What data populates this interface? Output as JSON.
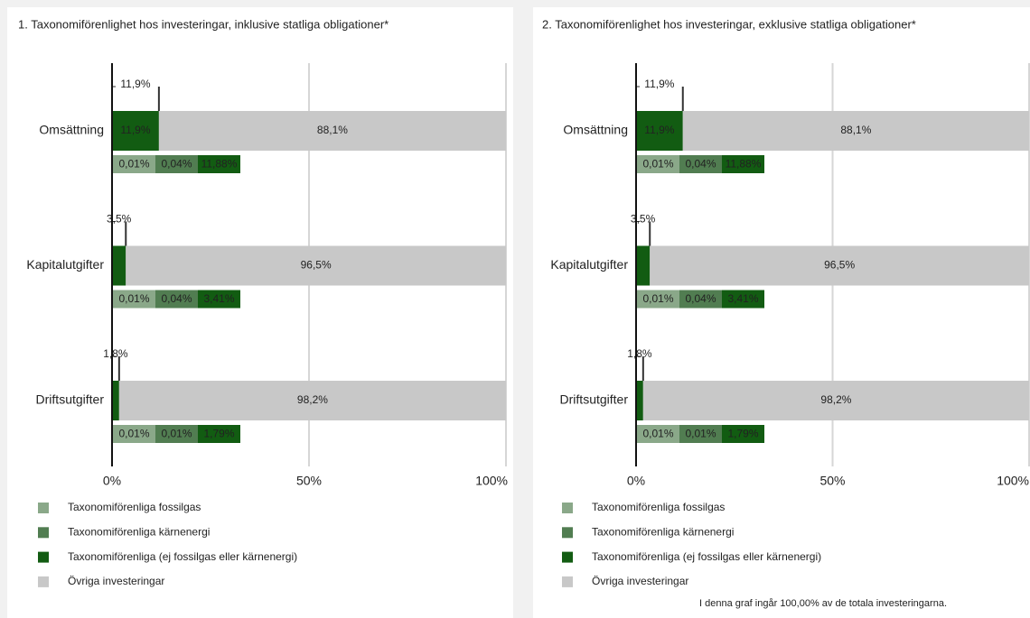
{
  "chart_data": [
    {
      "type": "bar",
      "title": "1. Taxonomiförenlighet hos investeringar, inklusive statliga obligationer*",
      "categories": [
        "Omsättning",
        "Kapitalutgifter",
        "Driftsutgifter"
      ],
      "aligned_total": {
        "color": "#125c12",
        "values": [
          11.9,
          3.5,
          1.8
        ],
        "value_labels": [
          "11,9%",
          "3,5%",
          "1,8%"
        ]
      },
      "series": [
        {
          "name": "Taxonomiförenliga fossilgas",
          "color": "#8aa889",
          "values": [
            0.01,
            0.01,
            0.01
          ],
          "value_labels": [
            "0,01%",
            "0,01%",
            "0,01%"
          ]
        },
        {
          "name": "Taxonomiförenliga kärnenergi",
          "color": "#517d51",
          "values": [
            0.04,
            0.04,
            0.01
          ],
          "value_labels": [
            "0,04%",
            "0,04%",
            "0,01%"
          ]
        },
        {
          "name": "Taxonomiförenliga (ej fossilgas eller kärnenergi)",
          "color": "#125c12",
          "values": [
            11.88,
            3.41,
            1.79
          ],
          "value_labels": [
            "11,88%",
            "3,41%",
            "1,79%"
          ]
        },
        {
          "name": "Övriga investeringar",
          "color": "#c8c8c8",
          "values": [
            88.1,
            96.5,
            98.2
          ],
          "value_labels": [
            "88,1%",
            "96,5%",
            "98,2%"
          ]
        }
      ],
      "xlim": [
        0,
        100
      ],
      "xticks": [
        {
          "value": 0,
          "label": "0%"
        },
        {
          "value": 50,
          "label": "50%"
        },
        {
          "value": 100,
          "label": "100%"
        }
      ],
      "grid": true
    },
    {
      "type": "bar",
      "title": "2. Taxonomiförenlighet hos investeringar, exklusive statliga obligationer*",
      "categories": [
        "Omsättning",
        "Kapitalutgifter",
        "Driftsutgifter"
      ],
      "aligned_total": {
        "color": "#125c12",
        "values": [
          11.9,
          3.5,
          1.8
        ],
        "value_labels": [
          "11,9%",
          "3,5%",
          "1,8%"
        ]
      },
      "series": [
        {
          "name": "Taxonomiförenliga fossilgas",
          "color": "#8aa889",
          "values": [
            0.01,
            0.01,
            0.01
          ],
          "value_labels": [
            "0,01%",
            "0,01%",
            "0,01%"
          ]
        },
        {
          "name": "Taxonomiförenliga kärnenergi",
          "color": "#517d51",
          "values": [
            0.04,
            0.04,
            0.01
          ],
          "value_labels": [
            "0,04%",
            "0,04%",
            "0,01%"
          ]
        },
        {
          "name": "Taxonomiförenliga (ej fossilgas eller kärnenergi)",
          "color": "#125c12",
          "values": [
            11.88,
            3.41,
            1.79
          ],
          "value_labels": [
            "11,88%",
            "3,41%",
            "1,79%"
          ]
        },
        {
          "name": "Övriga investeringar",
          "color": "#c8c8c8",
          "values": [
            88.1,
            96.5,
            98.2
          ],
          "value_labels": [
            "88,1%",
            "96,5%",
            "98,2%"
          ]
        }
      ],
      "xlim": [
        0,
        100
      ],
      "xticks": [
        {
          "value": 0,
          "label": "0%"
        },
        {
          "value": 50,
          "label": "50%"
        },
        {
          "value": 100,
          "label": "100%"
        }
      ],
      "grid": true,
      "note": "I denna graf ingår 100,00% av de totala investeringarna."
    }
  ]
}
